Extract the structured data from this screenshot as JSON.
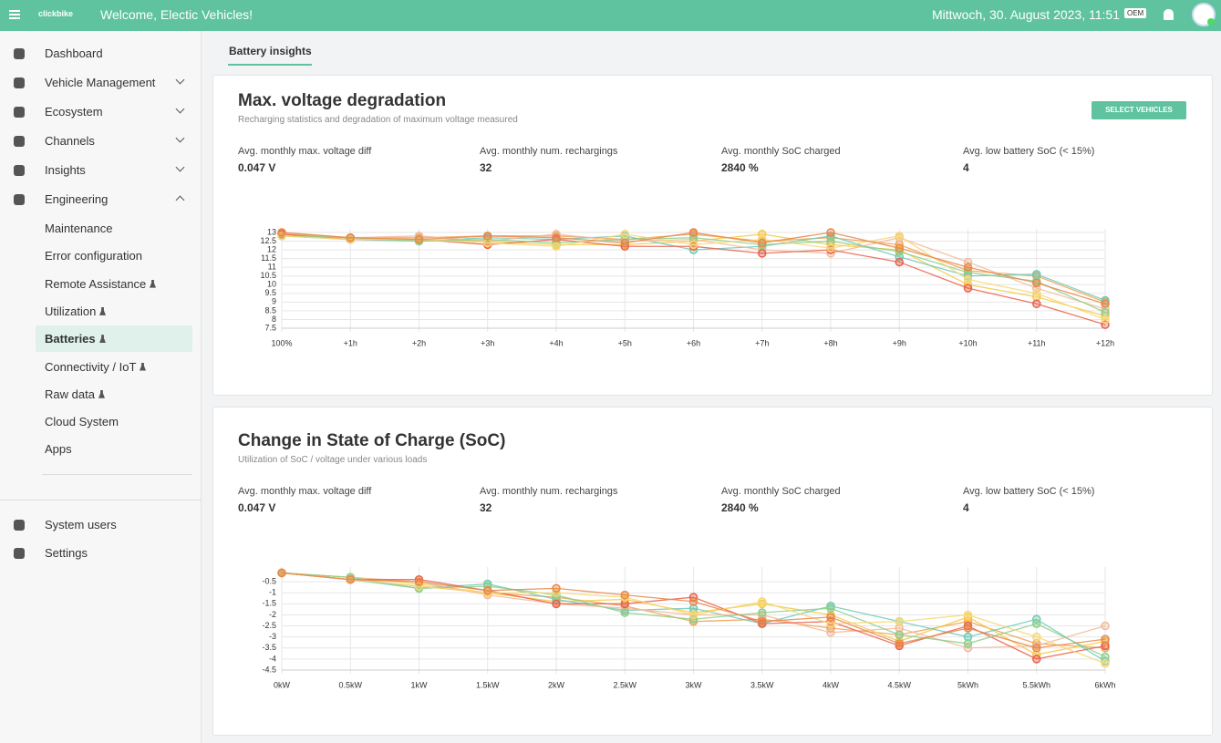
{
  "header": {
    "logo": "clickbike",
    "welcome": "Welcome, Electic Vehicles!",
    "datetime": "Mittwoch, 30. August 2023, 11:51",
    "badge": "OEM"
  },
  "sidebar": {
    "items": [
      "Dashboard",
      "Vehicle Management",
      "Ecosystem",
      "Channels",
      "Insights",
      "Engineering"
    ],
    "sub_items": [
      "Maintenance",
      "Error configuration",
      "Remote Assistance",
      "Utilization",
      "Batteries",
      "Connectivity / IoT",
      "Raw data",
      "Cloud System",
      "Apps"
    ],
    "bottom_items": [
      "System users",
      "Settings"
    ]
  },
  "tab": "Battery insights",
  "button": "SELECT VEHICLES",
  "cards": [
    {
      "title": "Max. voltage degradation",
      "subtitle": "Recharging statistics and degradation of maximum voltage measured",
      "stats": [
        {
          "label": "Avg. monthly max. voltage diff",
          "value": "0.047 V"
        },
        {
          "label": "Avg. monthly num. rechargings",
          "value": "32"
        },
        {
          "label": "Avg. monthly SoC charged",
          "value": "2840 %"
        },
        {
          "label": "Avg. low battery SoC (< 15%)",
          "value": "4"
        }
      ]
    },
    {
      "title": "Change in State of Charge (SoC)",
      "subtitle": "Utilization of SoC / voltage under various loads",
      "stats": [
        {
          "label": "Avg. monthly max. voltage diff",
          "value": "0.047 V"
        },
        {
          "label": "Avg. monthly num. rechargings",
          "value": "32"
        },
        {
          "label": "Avg. monthly SoC charged",
          "value": "2840 %"
        },
        {
          "label": "Avg. low battery SoC (< 15%)",
          "value": "4"
        }
      ]
    }
  ],
  "chart_data": [
    {
      "type": "line",
      "categories": [
        "100%",
        "+1h",
        "+2h",
        "+3h",
        "+4h",
        "+5h",
        "+6h",
        "+7h",
        "+8h",
        "+9h",
        "+10h",
        "+11h",
        "+12h"
      ],
      "ylim": [
        7.5,
        13
      ],
      "yticks": [
        7.5,
        8,
        8.5,
        9,
        9.5,
        10,
        10.5,
        11,
        11.5,
        12,
        12.5,
        13
      ],
      "grid": true,
      "series": [
        {
          "color": "#f0a050",
          "values": [
            12.9,
            12.7,
            12.7,
            12.8,
            12.8,
            12.6,
            12.9,
            12.5,
            12.7,
            12.3,
            10.8,
            10.5,
            9.0
          ]
        },
        {
          "color": "#f5c842",
          "values": [
            13.0,
            12.7,
            12.6,
            12.5,
            12.3,
            12.3,
            12.5,
            12.9,
            12.3,
            12.0,
            10.0,
            9.3,
            8.2
          ]
        },
        {
          "color": "#6cc9b8",
          "values": [
            12.8,
            12.6,
            12.5,
            12.7,
            12.6,
            12.8,
            12.0,
            12.2,
            12.8,
            11.6,
            10.5,
            10.6,
            9.1
          ]
        },
        {
          "color": "#f2b99a",
          "values": [
            12.9,
            12.7,
            12.8,
            12.5,
            12.9,
            12.5,
            12.6,
            12.0,
            11.8,
            12.7,
            11.3,
            9.8,
            8.6
          ]
        },
        {
          "color": "#e8604c",
          "values": [
            12.9,
            12.6,
            12.6,
            12.3,
            12.6,
            12.2,
            12.2,
            11.8,
            12.0,
            11.3,
            9.8,
            8.9,
            7.7
          ]
        },
        {
          "color": "#8ccf8a",
          "values": [
            12.8,
            12.7,
            12.5,
            12.6,
            12.4,
            12.6,
            12.7,
            12.3,
            12.5,
            11.9,
            10.7,
            10.2,
            8.4
          ]
        },
        {
          "color": "#f7d774",
          "values": [
            12.8,
            12.6,
            12.6,
            12.4,
            12.2,
            12.9,
            12.3,
            12.6,
            12.1,
            12.8,
            10.3,
            9.5,
            8.0
          ]
        },
        {
          "color": "#e8874a",
          "values": [
            13.0,
            12.7,
            12.6,
            12.8,
            12.7,
            12.4,
            13.0,
            12.4,
            13.0,
            12.1,
            11.0,
            10.1,
            8.9
          ]
        }
      ]
    },
    {
      "type": "line",
      "categories": [
        "0kW",
        "0.5kW",
        "1kW",
        "1.5kW",
        "2kW",
        "2.5kW",
        "3kW",
        "3.5kW",
        "4kW",
        "4.5kW",
        "5kWh",
        "5.5kWh",
        "6kWh"
      ],
      "ylim": [
        -4.5,
        0
      ],
      "yticks": [
        -4.5,
        -4,
        -3.5,
        -3,
        -2.5,
        -2,
        -1.5,
        -1,
        -0.5
      ],
      "grid": true,
      "series": [
        {
          "color": "#f0a050",
          "values": [
            -0.1,
            -0.4,
            -0.7,
            -1.0,
            -1.2,
            -1.6,
            -2.3,
            -2.2,
            -2.6,
            -2.9,
            -2.3,
            -3.3,
            -3.5
          ]
        },
        {
          "color": "#f5c842",
          "values": [
            -0.1,
            -0.3,
            -0.6,
            -1.0,
            -1.4,
            -1.3,
            -1.9,
            -1.5,
            -2.0,
            -3.2,
            -2.1,
            -3.8,
            -3.2
          ]
        },
        {
          "color": "#6cc9b8",
          "values": [
            -0.1,
            -0.4,
            -0.8,
            -0.6,
            -1.3,
            -1.8,
            -1.7,
            -2.4,
            -1.6,
            -2.3,
            -3.0,
            -2.2,
            -4.1
          ]
        },
        {
          "color": "#f2b99a",
          "values": [
            -0.1,
            -0.3,
            -0.5,
            -1.1,
            -1.5,
            -1.7,
            -2.0,
            -2.0,
            -2.8,
            -2.6,
            -3.5,
            -3.4,
            -2.5
          ]
        },
        {
          "color": "#e8604c",
          "values": [
            -0.1,
            -0.4,
            -0.4,
            -0.9,
            -1.5,
            -1.5,
            -1.2,
            -2.4,
            -2.3,
            -3.4,
            -2.5,
            -4.0,
            -3.4
          ]
        },
        {
          "color": "#8ccf8a",
          "values": [
            -0.1,
            -0.3,
            -0.8,
            -0.7,
            -1.1,
            -1.9,
            -2.2,
            -1.9,
            -1.7,
            -2.9,
            -3.3,
            -2.4,
            -3.9
          ]
        },
        {
          "color": "#f7d774",
          "values": [
            -0.1,
            -0.4,
            -0.7,
            -1.0,
            -1.0,
            -1.2,
            -2.0,
            -1.4,
            -2.4,
            -2.3,
            -2.0,
            -3.0,
            -4.2
          ]
        },
        {
          "color": "#e8874a",
          "values": [
            -0.1,
            -0.4,
            -0.5,
            -0.9,
            -0.8,
            -1.1,
            -1.4,
            -2.3,
            -2.1,
            -3.3,
            -2.6,
            -3.5,
            -3.1
          ]
        }
      ]
    }
  ]
}
